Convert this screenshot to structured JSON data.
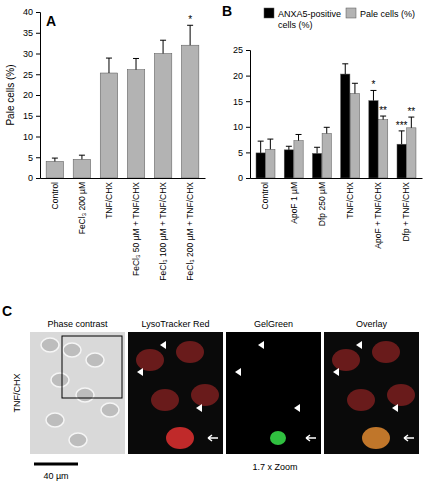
{
  "chart_data": [
    {
      "type": "bar",
      "title": "A",
      "y_label": "Pale cells (%)",
      "categories": [
        "Control",
        "FeCl₃ 200 µM",
        "TNF/CHX",
        "FeCl₃ 50 µM + TNF/CHX",
        "FeCl₃ 100 µM + TNF/CHX",
        "FeCl₃ 200 µM + TNF/CHX"
      ],
      "values": [
        4,
        4.5,
        25.3,
        26.1,
        30,
        32
      ],
      "errors": [
        0.8,
        1,
        3.6,
        2.7,
        3.2,
        4.8
      ],
      "color": "#b3b3b3",
      "ylim": [
        0,
        40
      ],
      "yticks": [
        0,
        5,
        10,
        15,
        20,
        25,
        30,
        35,
        40
      ],
      "annotations": [
        {
          "text": "*",
          "x": 5
        }
      ]
    },
    {
      "type": "bar",
      "title": "B",
      "categories": [
        "Control",
        "ApoF 1 µM",
        "Dfp 250 µM",
        "TNF/CHX",
        "ApoF + TNF/CHX",
        "Dfp + TNF/CHX"
      ],
      "series": [
        {
          "name": "ANXA5-positive cells (%)",
          "color": "#000000",
          "values": [
            4.9,
            5.5,
            4.8,
            20.3,
            15.1,
            6.6
          ],
          "errors": [
            2.3,
            0.7,
            1.2,
            2,
            2,
            2.6
          ]
        },
        {
          "name": "Pale cells (%)",
          "color": "#b3b3b3",
          "values": [
            5.6,
            7.3,
            8.7,
            16.5,
            11.4,
            9.8
          ],
          "errors": [
            2,
            1.2,
            1.2,
            2,
            0.7,
            2.1
          ]
        }
      ],
      "legend": "top",
      "ylim": [
        0,
        25
      ],
      "yticks": [
        0,
        5,
        10,
        15,
        20,
        25
      ],
      "annotations": [
        {
          "text": "*",
          "x": 4,
          "series": 0
        },
        {
          "text": "**",
          "x": 4,
          "series": 1
        },
        {
          "text": "***",
          "x": 5,
          "series": 0
        },
        {
          "text": "**",
          "x": 5,
          "series": 1
        }
      ]
    }
  ],
  "image_panel": {
    "label": "C",
    "row_label": "TNF/CHX",
    "titles": [
      "Phase contrast",
      "LysoTracker Red",
      "GelGreen",
      "Overlay"
    ],
    "scale_bar": "40 µm",
    "zoom": "1.7 x Zoom"
  }
}
